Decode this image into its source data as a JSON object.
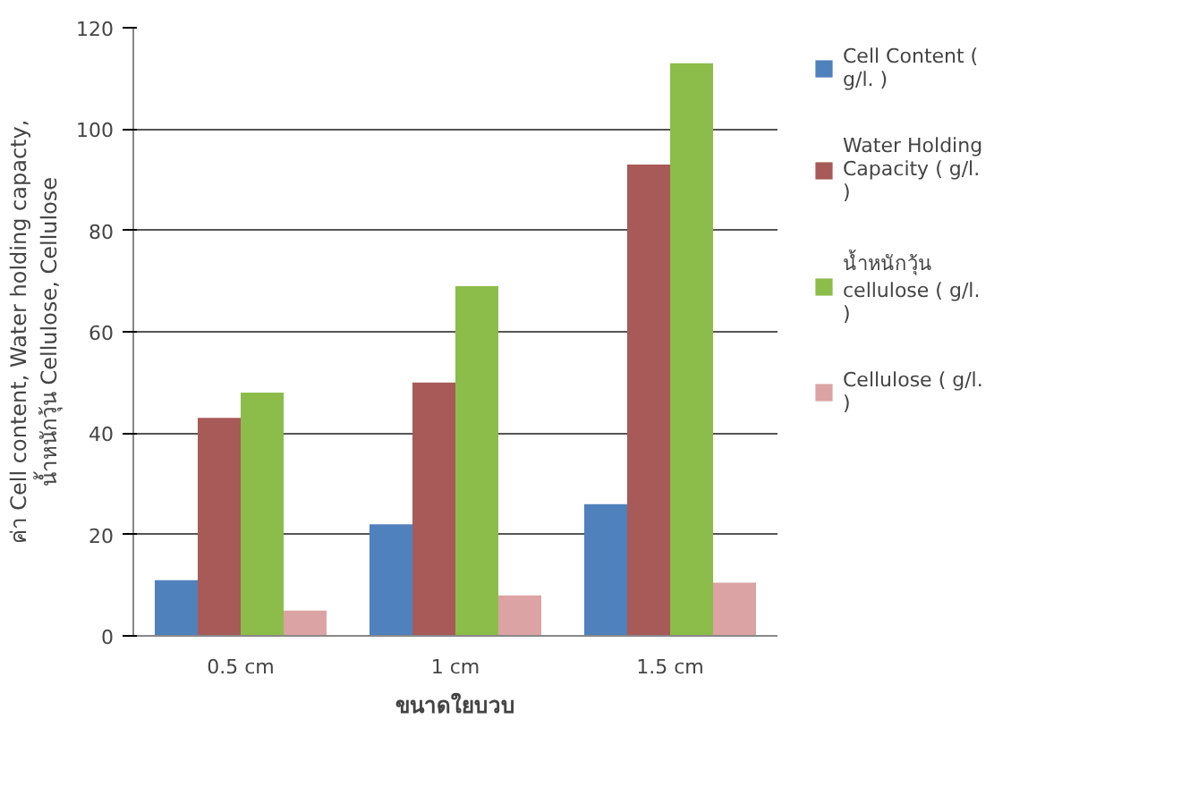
{
  "chart_data": {
    "type": "bar",
    "categories": [
      "0.5 cm",
      "1 cm",
      "1.5 cm"
    ],
    "xlabel": "ขนาดใยบวบ",
    "ylabel": "ค่า Cell content, Water holding capacty, น้ำหนักวุ้น Cellulose, Cellulose",
    "series": [
      {
        "name": "Cell Content ( g/l. )",
        "color": "#4f81bd",
        "values": [
          11,
          22,
          26
        ]
      },
      {
        "name": "Water Holding Capacity ( g/l. )",
        "color": "#a85a58",
        "values": [
          43,
          50,
          93
        ]
      },
      {
        "name": "น้ำหนักวุ้น cellulose ( g/l. )",
        "color": "#8cbc4a",
        "values": [
          48,
          69,
          113
        ]
      },
      {
        "name": "Cellulose ( g/l. )",
        "color": "#dba3a3",
        "values": [
          5,
          8,
          10.5
        ]
      }
    ],
    "ylim": [
      0,
      120
    ],
    "yticks": [
      0,
      20,
      40,
      60,
      80,
      100,
      120
    ],
    "grid": "y",
    "legend": "right"
  }
}
